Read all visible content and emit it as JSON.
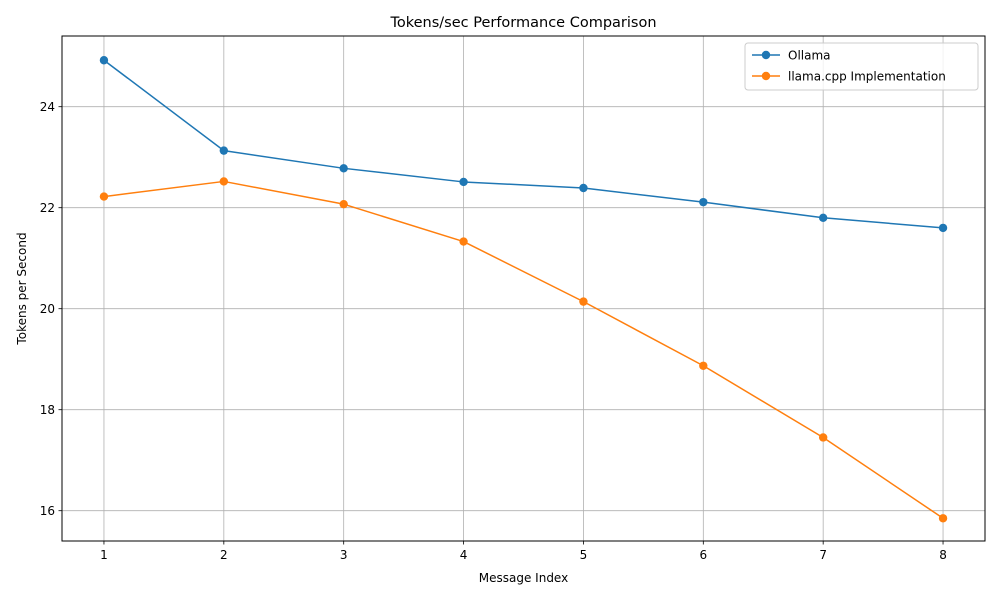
{
  "chart_data": {
    "type": "line",
    "title": "Tokens/sec Performance Comparison",
    "xlabel": "Message Index",
    "ylabel": "Tokens per Second",
    "x": [
      1,
      2,
      3,
      4,
      5,
      6,
      7,
      8
    ],
    "xticks": [
      "1",
      "2",
      "3",
      "4",
      "5",
      "6",
      "7",
      "8"
    ],
    "yticks": [
      "16",
      "18",
      "20",
      "22",
      "24"
    ],
    "xlim": [
      0.65,
      8.35
    ],
    "ylim": [
      15.4,
      25.4
    ],
    "grid": true,
    "legend_position": "top-right",
    "series": [
      {
        "name": "Ollama",
        "color": "#1f77b4",
        "marker": "circle",
        "values": [
          24.92,
          23.13,
          22.78,
          22.51,
          22.39,
          22.11,
          21.8,
          21.6
        ]
      },
      {
        "name": "llama.cpp Implementation",
        "color": "#ff7f0e",
        "marker": "circle",
        "values": [
          22.22,
          22.52,
          22.07,
          21.33,
          20.14,
          18.87,
          17.45,
          15.85
        ]
      }
    ]
  }
}
